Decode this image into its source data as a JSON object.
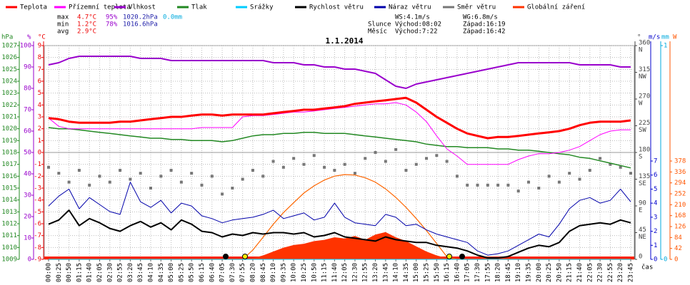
{
  "header": {
    "stats": [
      {
        "label": "max",
        "values": [
          "4.7°C",
          "95%",
          "1020.2hPa",
          "0.0mm"
        ]
      },
      {
        "label": "min",
        "values": [
          "1.2°C",
          "78%",
          "1016.6hPa"
        ]
      },
      {
        "label": "avg",
        "values": [
          "2.9°C"
        ]
      }
    ],
    "wind": [
      "WS:4.1m/s",
      "WG:6.8m/s"
    ],
    "sun": {
      "label": "Slunce",
      "rise": "Východ:08:02",
      "set": "Západ:16:19"
    },
    "moon": {
      "label": "Měsíc",
      "rise": "Východ:7:22",
      "set": "Západ:16:42"
    }
  },
  "chart_data": {
    "type": "line",
    "title": "1.1.2014",
    "x_label": "čas",
    "categories": [
      "00:00",
      "00:25",
      "00:50",
      "01:15",
      "01:40",
      "02:05",
      "02:30",
      "02:55",
      "03:20",
      "03:45",
      "04:10",
      "04:35",
      "05:00",
      "05:25",
      "05:50",
      "06:15",
      "06:40",
      "07:05",
      "07:30",
      "07:55",
      "08:20",
      "08:45",
      "09:10",
      "09:35",
      "10:00",
      "10:25",
      "10:50",
      "11:15",
      "11:40",
      "12:05",
      "12:30",
      "12:55",
      "13:20",
      "13:45",
      "14:10",
      "14:35",
      "15:00",
      "15:25",
      "15:50",
      "16:15",
      "16:40",
      "17:05",
      "17:30",
      "17:55",
      "18:20",
      "18:45",
      "19:10",
      "19:35",
      "20:00",
      "20:25",
      "20:50",
      "21:15",
      "21:40",
      "22:05",
      "22:30",
      "22:55",
      "23:20",
      "23:45"
    ],
    "axes": {
      "hPa": {
        "label": "hPa",
        "color": "#228822",
        "lim": [
          1009,
          1027
        ],
        "ticks": [
          1009,
          1010,
          1011,
          1012,
          1013,
          1014,
          1015,
          1016,
          1017,
          1018,
          1019,
          1020,
          1021,
          1022,
          1023,
          1024,
          1025,
          1026,
          1027
        ]
      },
      "pct": {
        "label": "%",
        "color": "#9900cc",
        "lim": [
          0,
          100
        ],
        "ticks": [
          0,
          10,
          20,
          30,
          40,
          50,
          60,
          70,
          80,
          90,
          100
        ]
      },
      "C": {
        "label": "°C",
        "color": "#ee0000",
        "lim": [
          -9,
          9
        ],
        "ticks": [
          -9,
          -8,
          -7,
          -6,
          -5,
          -4,
          -3,
          -2,
          -1,
          0,
          1,
          2,
          3,
          4,
          5,
          6,
          7,
          8,
          9
        ]
      },
      "deg": {
        "label": "°",
        "color": "#444444",
        "lim": [
          0,
          360
        ],
        "ticks": [
          0,
          45,
          90,
          135,
          180,
          225,
          270,
          315,
          360
        ],
        "compass": [
          null,
          "NE",
          "E",
          "SE",
          "S",
          "SW",
          "W",
          "NW",
          "N"
        ]
      },
      "ms": {
        "label": "m/s",
        "color": "#0000cc",
        "lim": [
          0,
          7
        ],
        "ticks": [
          0,
          1,
          2,
          3,
          4,
          5,
          6,
          7
        ]
      },
      "mm": {
        "label": "mm",
        "color": "#00aadd",
        "lim": [
          0,
          1
        ],
        "ticks": [
          0,
          1
        ]
      },
      "W": {
        "label": "W",
        "color": "#ff5500",
        "lim": [
          0,
          378
        ],
        "ticks": [
          0,
          42,
          84,
          126,
          168,
          210,
          252,
          294,
          336,
          378
        ]
      }
    },
    "series": [
      {
        "name": "Teplota",
        "color": "#ff0000",
        "axis": "C",
        "style": "line",
        "width": 3,
        "values": [
          2.9,
          2.8,
          2.6,
          2.5,
          2.5,
          2.5,
          2.5,
          2.6,
          2.6,
          2.7,
          2.8,
          2.9,
          3.0,
          3.0,
          3.1,
          3.2,
          3.2,
          3.1,
          3.2,
          3.2,
          3.2,
          3.2,
          3.3,
          3.4,
          3.5,
          3.6,
          3.6,
          3.7,
          3.8,
          3.9,
          4.1,
          4.2,
          4.3,
          4.4,
          4.5,
          4.6,
          4.2,
          3.6,
          3.0,
          2.5,
          2.0,
          1.6,
          1.4,
          1.2,
          1.3,
          1.3,
          1.4,
          1.5,
          1.6,
          1.7,
          1.8,
          2.0,
          2.3,
          2.5,
          2.6,
          2.6,
          2.6,
          2.7
        ]
      },
      {
        "name": "Přízemní teplota",
        "color": "#ff00ff",
        "axis": "C",
        "style": "line",
        "width": 1,
        "values": [
          2.9,
          2.2,
          2.0,
          2.0,
          2.0,
          2.0,
          2.0,
          2.0,
          2.0,
          2.0,
          2.0,
          2.0,
          2.0,
          2.0,
          2.0,
          2.1,
          2.1,
          2.1,
          2.1,
          3.0,
          3.1,
          3.1,
          3.2,
          3.3,
          3.4,
          3.4,
          3.5,
          3.6,
          3.7,
          3.8,
          3.9,
          4.0,
          4.1,
          4.1,
          4.2,
          4.0,
          3.4,
          2.6,
          1.4,
          0.3,
          -0.3,
          -1.0,
          -1.0,
          -1.0,
          -1.0,
          -1.0,
          -0.6,
          -0.3,
          -0.1,
          -0.1,
          0.0,
          0.2,
          0.5,
          1.0,
          1.5,
          1.8,
          1.9,
          1.9
        ]
      },
      {
        "name": "Vlhkost",
        "color": "#9900cc",
        "axis": "pct",
        "style": "line",
        "width": 2,
        "values": [
          91,
          92,
          94,
          95,
          95,
          95,
          95,
          95,
          95,
          94,
          94,
          94,
          93,
          93,
          93,
          93,
          93,
          93,
          93,
          93,
          93,
          93,
          92,
          92,
          92,
          91,
          91,
          90,
          90,
          89,
          89,
          88,
          87,
          84,
          81,
          80,
          82,
          83,
          84,
          85,
          86,
          87,
          88,
          89,
          90,
          91,
          92,
          92,
          92,
          92,
          92,
          92,
          91,
          91,
          91,
          91,
          90,
          90
        ]
      },
      {
        "name": "Tlak",
        "color": "#228822",
        "axis": "hPa",
        "style": "line",
        "width": 1.5,
        "values": [
          1020.1,
          1020.0,
          1020.0,
          1019.9,
          1019.8,
          1019.7,
          1019.6,
          1019.5,
          1019.4,
          1019.3,
          1019.2,
          1019.2,
          1019.1,
          1019.1,
          1019.0,
          1019.0,
          1019.0,
          1018.9,
          1019.0,
          1019.2,
          1019.4,
          1019.5,
          1019.5,
          1019.6,
          1019.6,
          1019.7,
          1019.7,
          1019.6,
          1019.6,
          1019.6,
          1019.5,
          1019.4,
          1019.3,
          1019.2,
          1019.1,
          1019.0,
          1018.9,
          1018.7,
          1018.6,
          1018.5,
          1018.5,
          1018.4,
          1018.4,
          1018.4,
          1018.3,
          1018.3,
          1018.2,
          1018.2,
          1018.1,
          1018.0,
          1017.9,
          1017.8,
          1017.6,
          1017.5,
          1017.3,
          1017.1,
          1016.9,
          1016.7
        ]
      },
      {
        "name": "Srážky",
        "color": "#00ccff",
        "axis": "mm",
        "style": "line",
        "width": 1,
        "values": [
          0,
          0,
          0,
          0,
          0,
          0,
          0,
          0,
          0,
          0,
          0,
          0,
          0,
          0,
          0,
          0,
          0,
          0,
          0,
          0,
          0,
          0,
          0,
          0,
          0,
          0,
          0,
          0,
          0,
          0,
          0,
          0,
          0,
          0,
          0,
          0,
          0,
          0,
          0,
          0,
          0,
          0,
          0,
          0,
          0,
          0,
          0,
          0,
          0,
          0,
          0,
          0,
          0,
          0,
          0,
          0,
          0,
          0
        ]
      },
      {
        "name": "Rychlost větru",
        "color": "#000000",
        "axis": "ms",
        "style": "line",
        "width": 2,
        "values": [
          2.5,
          2.8,
          3.5,
          2.4,
          2.9,
          2.6,
          2.2,
          2.0,
          2.4,
          2.7,
          2.3,
          2.6,
          2.1,
          2.8,
          2.5,
          2.0,
          1.9,
          1.6,
          1.8,
          1.7,
          1.9,
          1.8,
          1.9,
          1.9,
          1.8,
          1.9,
          1.6,
          1.7,
          1.9,
          1.6,
          1.5,
          1.4,
          1.3,
          1.6,
          1.4,
          1.3,
          1.2,
          1.2,
          1.0,
          0.9,
          0.8,
          0.6,
          0.3,
          0.1,
          0.1,
          0.2,
          0.5,
          0.8,
          1.0,
          0.9,
          1.2,
          2.0,
          2.4,
          2.5,
          2.6,
          2.5,
          2.8,
          2.6
        ]
      },
      {
        "name": "Náraz větru",
        "color": "#0000aa",
        "axis": "ms",
        "style": "line",
        "width": 1,
        "values": [
          3.8,
          4.5,
          5.0,
          3.6,
          4.4,
          3.9,
          3.4,
          3.2,
          5.5,
          4.1,
          3.7,
          4.2,
          3.3,
          4.0,
          3.8,
          3.1,
          2.9,
          2.6,
          2.8,
          2.9,
          3.0,
          3.2,
          3.5,
          2.9,
          3.1,
          3.3,
          2.8,
          3.0,
          4.0,
          3.0,
          2.6,
          2.5,
          2.4,
          3.2,
          3.0,
          2.4,
          2.5,
          2.1,
          1.8,
          1.6,
          1.4,
          1.2,
          0.6,
          0.3,
          0.4,
          0.6,
          1.0,
          1.4,
          1.8,
          1.6,
          2.5,
          3.6,
          4.2,
          4.4,
          4.0,
          4.2,
          5.0,
          4.1
        ]
      },
      {
        "name": "Směr větru",
        "color": "#777777",
        "axis": "deg",
        "style": "scatter",
        "values": [
          155,
          145,
          130,
          150,
          125,
          140,
          130,
          150,
          135,
          145,
          120,
          140,
          150,
          130,
          145,
          125,
          140,
          110,
          120,
          135,
          150,
          140,
          165,
          155,
          170,
          160,
          175,
          155,
          150,
          160,
          145,
          170,
          180,
          165,
          185,
          150,
          160,
          170,
          175,
          165,
          140,
          125,
          125,
          125,
          125,
          125,
          115,
          130,
          120,
          140,
          130,
          145,
          135,
          150,
          170,
          160,
          155,
          145
        ]
      },
      {
        "name": "Globální záření",
        "color": "#ff3300",
        "axis": "W",
        "style": "area",
        "values": [
          0,
          0,
          0,
          0,
          0,
          0,
          0,
          0,
          0,
          0,
          0,
          0,
          0,
          0,
          0,
          0,
          0,
          0,
          0,
          0,
          5,
          15,
          30,
          45,
          55,
          60,
          70,
          75,
          85,
          80,
          90,
          75,
          95,
          105,
          85,
          70,
          50,
          30,
          15,
          5,
          0,
          0,
          0,
          0,
          0,
          0,
          0,
          0,
          0,
          0,
          0,
          0,
          0,
          0,
          0,
          0,
          0,
          0
        ]
      }
    ],
    "solar_theoretical": {
      "color": "#ff6600",
      "axis": "W",
      "values": [
        0,
        0,
        0,
        0,
        0,
        0,
        0,
        0,
        0,
        0,
        0,
        0,
        0,
        0,
        0,
        0,
        0,
        0,
        0,
        0,
        36,
        85,
        135,
        180,
        218,
        255,
        283,
        305,
        320,
        326,
        324,
        314,
        297,
        271,
        238,
        200,
        157,
        111,
        61,
        10,
        0,
        0,
        0,
        0,
        0,
        0,
        0,
        0,
        0,
        0,
        0,
        0,
        0,
        0,
        0,
        0,
        0,
        0
      ]
    }
  }
}
